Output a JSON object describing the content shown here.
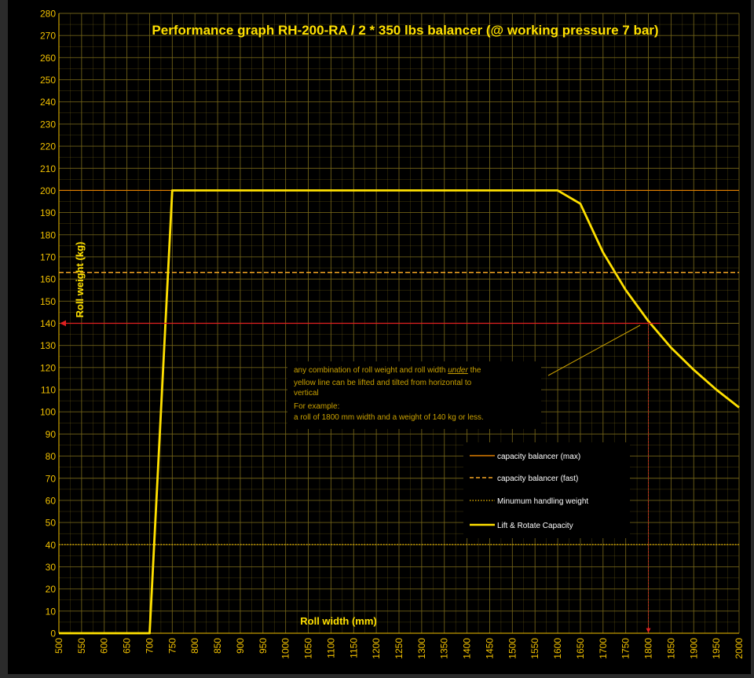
{
  "chart_data": {
    "type": "line",
    "title": "Performance graph RH-200-RA / 2 * 350 lbs balancer (@ working pressure 7 bar)",
    "xlabel": "Roll width (mm)",
    "ylabel": "Roll weight (kg)",
    "xlim": [
      500,
      2000
    ],
    "ylim": [
      0,
      280
    ],
    "x_ticks": [
      "500",
      "550",
      "600",
      "650",
      "700",
      "750",
      "800",
      "850",
      "900",
      "950",
      "1000",
      "1050",
      "1100",
      "1150",
      "1200",
      "1250",
      "1300",
      "1350",
      "1400",
      "1450",
      "1500",
      "1550",
      "1600",
      "1650",
      "1700",
      "1750",
      "1800",
      "1850",
      "1900",
      "1950",
      "2000"
    ],
    "y_ticks": [
      "0",
      "10",
      "20",
      "30",
      "40",
      "50",
      "60",
      "70",
      "80",
      "90",
      "100",
      "110",
      "120",
      "130",
      "140",
      "150",
      "160",
      "170",
      "180",
      "190",
      "200",
      "210",
      "220",
      "230",
      "240",
      "250",
      "260",
      "270",
      "280"
    ],
    "grid": true,
    "legend_placement": "lower-right",
    "colors": {
      "background": "#000000",
      "grid": "#7a6a1a",
      "axis_text": "#f2c100",
      "max_line": "#d97a00",
      "fast_line": "#f5a623",
      "min_line": "#d4a500",
      "capacity_line": "#ffe000",
      "example_line": "#e02020"
    },
    "series": [
      {
        "name": "capacity balancer (max)",
        "style": "solid",
        "x": [
          500,
          2000
        ],
        "y": [
          200,
          200
        ]
      },
      {
        "name": "capacity balancer (fast)",
        "style": "dashed",
        "x": [
          500,
          2000
        ],
        "y": [
          163,
          163
        ]
      },
      {
        "name": "Minumum handling weight",
        "style": "dotted",
        "x": [
          500,
          2000
        ],
        "y": [
          40,
          40
        ]
      },
      {
        "name": "Lift & Rotate Capacity",
        "style": "solid-thick",
        "x": [
          500,
          700,
          750,
          1600,
          1650,
          1700,
          1750,
          1800,
          1850,
          1900,
          1950,
          2000
        ],
        "y": [
          0,
          0,
          200,
          200,
          194,
          172,
          155,
          141,
          129,
          119,
          110,
          102
        ]
      }
    ],
    "example_marker": {
      "x": 1800,
      "y": 140
    },
    "annotation": {
      "line1_pre": "any combination of roll weight and roll width ",
      "line1_em": "under",
      "line1_post": " the",
      "line2": "yellow line can be lifted and tilted from horizontal to",
      "line3": "vertical",
      "line4": "For example:",
      "line5": "a roll of 1800 mm width and a weight of 140 kg or less."
    }
  }
}
